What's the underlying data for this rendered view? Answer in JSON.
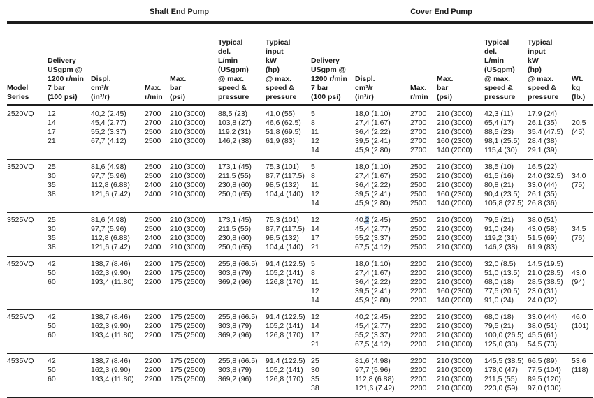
{
  "table": {
    "section_headers": {
      "shaft": "Shaft End Pump",
      "cover": "Cover End Pump"
    },
    "columns": {
      "model": "Model\nSeries",
      "shaft": {
        "delivery": "Delivery\nUSgpm @\n1200 r/min\n7 bar\n(100 psi)",
        "displ": "Displ.\ncm³/r\n(in³/r)",
        "rpm": "Max.\nr/min",
        "bar": "Max.\nbar\n(psi)",
        "typical_del": "Typical\ndel.\nL/min\n(USgpm)\n@ max.\nspeed &\npressure",
        "typical_input": "Typical\ninput\nkW\n(hp)\n@ max.\nspeed &\npressure"
      },
      "cover": {
        "delivery": "Delivery\nUSgpm @\n1200 r/min\n7 bar\n(100 psi)",
        "displ": "Displ.\ncm³/r\n(in³/r)",
        "rpm": "Max.\nr/min",
        "bar": "Max.\nbar\n(psi)",
        "typical_del": "Typical\ndel.\nL/min\n(USgpm)\n@ max.\nspeed &\npressure",
        "typical_input": "Typical\ninput\nkW\n(hp)\n@ max.\nspeed &\npressure"
      },
      "weight": "Wt.\nkg\n(lb.)"
    },
    "groups": [
      {
        "model": "2520VQ",
        "shaft": [
          [
            "12",
            "40,2 (2.45)",
            "2700",
            "210 (3000)",
            "88,5 (23)",
            "41,0 (55)"
          ],
          [
            "14",
            "45,4 (2.77)",
            "2700",
            "210 (3000)",
            "103,8 (27)",
            "46,6 (62.5)"
          ],
          [
            "17",
            "55,2 (3.37)",
            "2500",
            "210 (3000)",
            "119,2 (31)",
            "51,8 (69.5)"
          ],
          [
            "21",
            "67,7 (4.12)",
            "2500",
            "210 (3000)",
            "146,2 (38)",
            "61,9 (83)"
          ]
        ],
        "cover": [
          [
            "5",
            "18,0 (1.10)",
            "2700",
            "210 (3000)",
            "42,3 (11)",
            "17,9 (24)"
          ],
          [
            "8",
            "27,4 (1.67)",
            "2700",
            "210 (3000)",
            "65,4 (17)",
            "26,1 (35)"
          ],
          [
            "11",
            "36,4 (2.22)",
            "2700",
            "210 (3000)",
            "88,5 (23)",
            "35,4 (47.5)"
          ],
          [
            "12",
            "39,5 (2.41)",
            "2700",
            "160 (2300)",
            "98,1 (25.5)",
            "28,4 (38)"
          ],
          [
            "14",
            "45,9 (2.80)",
            "2700",
            "140 (2000)",
            "115,4 (30)",
            "29,1 (39)"
          ]
        ],
        "weight": [
          "",
          "20,5",
          "(45)",
          "",
          ""
        ]
      },
      {
        "model": "3520VQ",
        "shaft": [
          [
            "25",
            "81,6 (4.98)",
            "2500",
            "210 (3000)",
            "173,1 (45)",
            "75,3 (101)"
          ],
          [
            "30",
            "97,7 (5.96)",
            "2500",
            "210 (3000)",
            "211,5 (55)",
            "87,7 (117.5)"
          ],
          [
            "35",
            "112,8 (6.88)",
            "2400",
            "210 (3000)",
            "230,8 (60)",
            "98,5 (132)"
          ],
          [
            "38",
            "121,6 (7.42)",
            "2400",
            "210 (3000)",
            "250,0 (65)",
            "104,4 (140)"
          ]
        ],
        "cover": [
          [
            "5",
            "18,0 (1.10)",
            "2500",
            "210 (3000)",
            "38,5 (10)",
            "16,5 (22)"
          ],
          [
            "8",
            "27,4 (1.67)",
            "2500",
            "210 (3000)",
            "61,5 (16)",
            "24,0 (32.5)"
          ],
          [
            "11",
            "36,4 (2.22)",
            "2500",
            "210 (3000)",
            "80,8 (21)",
            "33,0 (44)"
          ],
          [
            "12",
            "39,5 (2.41)",
            "2500",
            "160 (2300)",
            "90,4 (23.5)",
            "26,1 (35)"
          ],
          [
            "14",
            "45,9 (2.80)",
            "2500",
            "140 (2000)",
            "105,8 (27.5)",
            "26,8 (36)"
          ]
        ],
        "weight": [
          "",
          "34,0",
          "(75)",
          "",
          ""
        ]
      },
      {
        "model": "3525VQ",
        "shaft": [
          [
            "25",
            "81,6 (4.98)",
            "2500",
            "210 (3000)",
            "173,1 (45)",
            "75,3 (101)"
          ],
          [
            "30",
            "97,7 (5.96)",
            "2500",
            "210 (3000)",
            "211,5 (55)",
            "87,7 (117.5)"
          ],
          [
            "35",
            "112,8 (6.88)",
            "2400",
            "210 (3000)",
            "230,8 (60)",
            "98,5 (132)"
          ],
          [
            "38",
            "121,6 (7.42)",
            "2400",
            "210 (3000)",
            "250,0 (65)",
            "104,4 (140)"
          ]
        ],
        "cover": [
          [
            "12",
            "40,2 (2.45)",
            "2500",
            "210 (3000)",
            "79,5 (21)",
            "38,0 (51)"
          ],
          [
            "14",
            "45,4 (2.77)",
            "2500",
            "210 (3000)",
            "91,0 (24)",
            "43,0 (58)"
          ],
          [
            "17",
            "55,2 (3.37)",
            "2500",
            "210 (3000)",
            "119,2 (31)",
            "51,5 (69)"
          ],
          [
            "21",
            "67,5 (4.12)",
            "2500",
            "210 (3000)",
            "146,2 (38)",
            "61,9 (83)"
          ]
        ],
        "weight": [
          "",
          "34,5",
          "(76)",
          ""
        ]
      },
      {
        "model": "4520VQ",
        "shaft": [
          [
            "42",
            "138,7 (8.46)",
            "2200",
            "175 (2500)",
            "255,8 (66.5)",
            "91,4 (122.5)"
          ],
          [
            "50",
            "162,3 (9.90)",
            "2200",
            "175 (2500)",
            "303,8 (79)",
            "105,2 (141)"
          ],
          [
            "60",
            "193,4 (11.80)",
            "2200",
            "175 (2500)",
            "369,2 (96)",
            "126,8 (170)"
          ]
        ],
        "cover": [
          [
            "5",
            "18,0 (1.10)",
            "2200",
            "210 (3000)",
            "32,0 (8.5)",
            "14,5 (19.5)"
          ],
          [
            "8",
            "27,4 (1.67)",
            "2200",
            "210 (3000)",
            "51,0 (13.5)",
            "21,0 (28.5)"
          ],
          [
            "11",
            "36,4 (2.22)",
            "2200",
            "210 (3000)",
            "68,0 (18)",
            "28,5 (38.5)"
          ],
          [
            "12",
            "39,5 (2.41)",
            "2200",
            "160 (2300)",
            "77,5 (20.5)",
            "23,0 (31)"
          ],
          [
            "14",
            "45,9 (2.80)",
            "2200",
            "140 (2000)",
            "91,0 (24)",
            "24,0 (32)"
          ]
        ],
        "weight": [
          "",
          "43,0",
          "(94)",
          "",
          ""
        ]
      },
      {
        "model": "4525VQ",
        "shaft": [
          [
            "42",
            "138,7 (8.46)",
            "2200",
            "175 (2500)",
            "255,8 (66.5)",
            "91,4 (122.5)"
          ],
          [
            "50",
            "162,3 (9.90)",
            "2200",
            "175 (2500)",
            "303,8 (79)",
            "105,2 (141)"
          ],
          [
            "60",
            "193,4 (11.80)",
            "2200",
            "175 (2500)",
            "369,2 (96)",
            "126,8 (170)"
          ]
        ],
        "cover": [
          [
            "12",
            "40,2 (2.45)",
            "2200",
            "210 (3000)",
            "68,0 (18)",
            "33,0 (44)"
          ],
          [
            "14",
            "45,4 (2.77)",
            "2200",
            "210 (3000)",
            "79,5 (21)",
            "38,0 (51)"
          ],
          [
            "17",
            "55,2 (3.37)",
            "2200",
            "210 (3000)",
            "100,0 (26.5)",
            "45,5 (61)"
          ],
          [
            "21",
            "67,5 (4.12)",
            "2200",
            "210 (3000)",
            "125,0 (33)",
            "54,5 (73)"
          ]
        ],
        "weight": [
          "46,0",
          "(101)",
          "",
          ""
        ]
      },
      {
        "model": "4535VQ",
        "shaft": [
          [
            "42",
            "138,7 (8.46)",
            "2200",
            "175 (2500)",
            "255,8 (66.5)",
            "91,4 (122.5)"
          ],
          [
            "50",
            "162,3 (9.90)",
            "2200",
            "175 (2500)",
            "303,8 (79)",
            "105,2 (141)"
          ],
          [
            "60",
            "193,4 (11.80)",
            "2200",
            "175 (2500)",
            "369,2 (96)",
            "126,8 (170)"
          ]
        ],
        "cover": [
          [
            "25",
            "81,6 (4.98)",
            "2200",
            "210 (3000)",
            "145,5 (38.5)",
            "66,5 (89)"
          ],
          [
            "30",
            "97,7 (5.96)",
            "2200",
            "210 (3000)",
            "178,0 (47)",
            "77,5 (104)"
          ],
          [
            "35",
            "112,8 (6.88)",
            "2200",
            "210 (3000)",
            "211,5 (55)",
            "89,5 (120)"
          ],
          [
            "38",
            "121,6 (7.42)",
            "2200",
            "210 (3000)",
            "223,0 (59)",
            "97,0 (130)"
          ]
        ],
        "weight": [
          "53,6",
          "(118)",
          "",
          ""
        ]
      }
    ],
    "highlight": {
      "model": "3525VQ",
      "section": "cover",
      "row": 0,
      "cell_index": 8,
      "prefix": "40,",
      "char": "2",
      "suffix": " (2.45)",
      "color": "#a9c7e6"
    }
  }
}
